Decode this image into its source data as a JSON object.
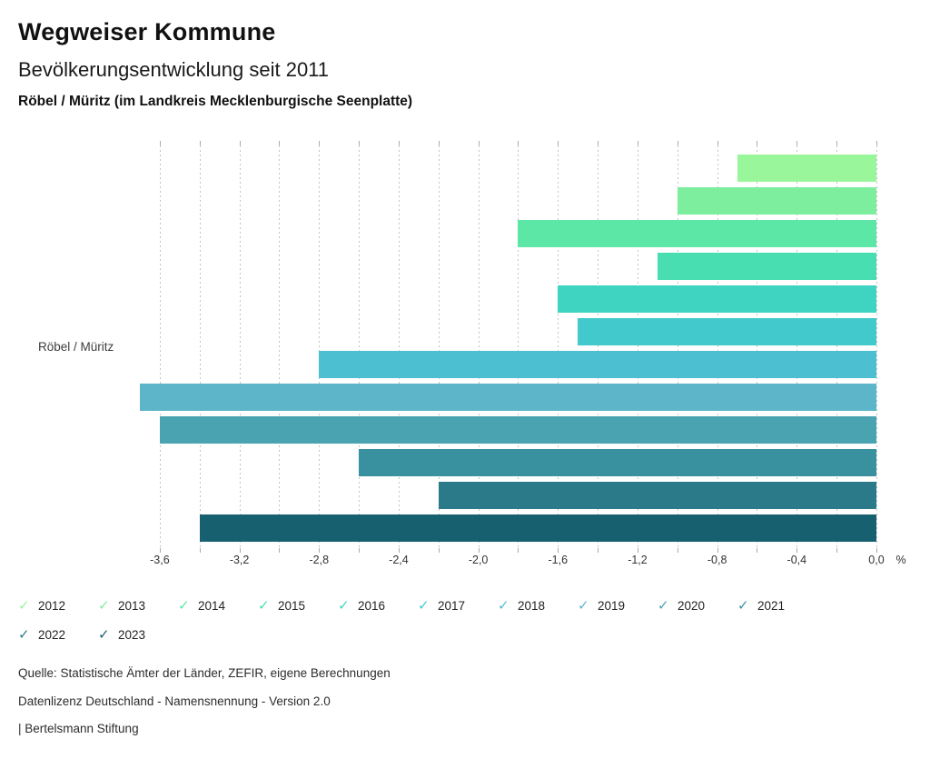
{
  "header": {
    "title": "Wegweiser Kommune",
    "subtitle": "Bevölkerungsentwicklung seit 2011",
    "region_line": "Röbel / Müritz (im Landkreis Mecklenburgische Seenplatte)"
  },
  "chart_data": {
    "type": "bar",
    "orientation": "horizontal",
    "category_label": "Röbel / Müritz",
    "unit": "%",
    "xlim": [
      -3.7,
      0
    ],
    "grid": {
      "from": -3.6,
      "to": 0.0,
      "step": 0.2,
      "style": "dashed"
    },
    "x_tick_labels": [
      {
        "value": -3.6,
        "label": "-3,6"
      },
      {
        "value": -3.2,
        "label": "-3,2"
      },
      {
        "value": -2.8,
        "label": "-2,8"
      },
      {
        "value": -2.4,
        "label": "-2,4"
      },
      {
        "value": -2.0,
        "label": "-2,0"
      },
      {
        "value": -1.6,
        "label": "-1,6"
      },
      {
        "value": -1.2,
        "label": "-1,2"
      },
      {
        "value": -0.8,
        "label": "-0,8"
      },
      {
        "value": -0.4,
        "label": "-0,4"
      },
      {
        "value": 0.0,
        "label": "0,0"
      }
    ],
    "series": [
      {
        "year": "2012",
        "value": -0.7,
        "color": "#9af69a"
      },
      {
        "year": "2013",
        "value": -1.0,
        "color": "#7dee9e"
      },
      {
        "year": "2014",
        "value": -1.8,
        "color": "#5de7a6"
      },
      {
        "year": "2015",
        "value": -1.1,
        "color": "#48deb2"
      },
      {
        "year": "2016",
        "value": -1.6,
        "color": "#3ed4c1"
      },
      {
        "year": "2017",
        "value": -1.5,
        "color": "#41c9cc"
      },
      {
        "year": "2018",
        "value": -2.8,
        "color": "#4cbfd0"
      },
      {
        "year": "2019",
        "value": -3.7,
        "color": "#5cb5c8"
      },
      {
        "year": "2020",
        "value": -3.6,
        "color": "#49a3b1"
      },
      {
        "year": "2021",
        "value": -2.6,
        "color": "#39909f"
      },
      {
        "year": "2022",
        "value": -2.2,
        "color": "#2b7a89"
      },
      {
        "year": "2023",
        "value": -3.4,
        "color": "#17606f"
      }
    ],
    "legend_position": "bottom",
    "legend_check_glyph": "✓"
  },
  "footer": {
    "source": "Quelle: Statistische Ämter der Länder, ZEFIR, eigene Berechnungen",
    "license": "Datenlizenz Deutschland - Namensnennung - Version 2.0",
    "brand": "| Bertelsmann Stiftung"
  }
}
